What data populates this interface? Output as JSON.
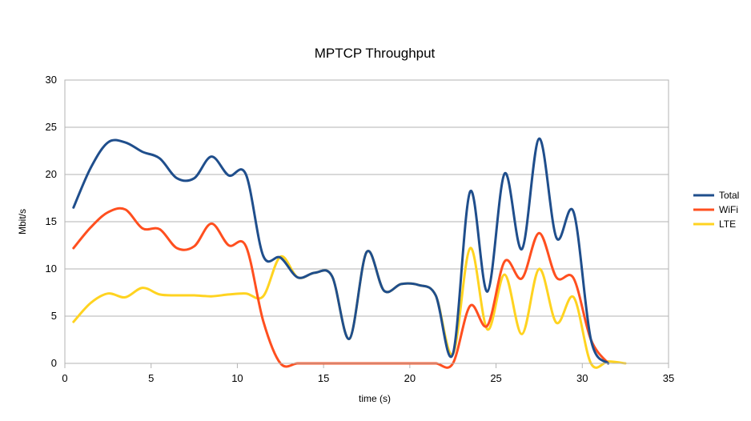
{
  "chart_data": {
    "type": "line",
    "title": "MPTCP Throughput",
    "xlabel": "time (s)",
    "ylabel": "Mbit/s",
    "xlim": [
      0,
      35
    ],
    "ylim": [
      0,
      30
    ],
    "x_ticks": [
      "0",
      "5",
      "10",
      "15",
      "20",
      "25",
      "30",
      "35"
    ],
    "y_ticks": [
      "0",
      "5",
      "10",
      "15",
      "20",
      "25",
      "30"
    ],
    "grid": "horizontal",
    "legend_position": "right",
    "series": [
      {
        "name": "Total",
        "color": "#1f4e8c",
        "points": [
          [
            0.5,
            16.5
          ],
          [
            1.5,
            20.7
          ],
          [
            2.5,
            23.4
          ],
          [
            3.5,
            23.4
          ],
          [
            4.5,
            22.4
          ],
          [
            5.5,
            21.7
          ],
          [
            6.5,
            19.6
          ],
          [
            7.5,
            19.6
          ],
          [
            8.5,
            21.9
          ],
          [
            9.5,
            19.9
          ],
          [
            10.5,
            20
          ],
          [
            11.5,
            11.4
          ],
          [
            12.5,
            11.2
          ],
          [
            13.5,
            9.1
          ],
          [
            14.5,
            9.6
          ],
          [
            15.5,
            9.2
          ],
          [
            16.5,
            2.6
          ],
          [
            17.5,
            11.8
          ],
          [
            18.5,
            7.7
          ],
          [
            19.5,
            8.4
          ],
          [
            20.5,
            8.3
          ],
          [
            21.5,
            7.2
          ],
          [
            22.5,
            1
          ],
          [
            23.5,
            18.2
          ],
          [
            24.5,
            7.6
          ],
          [
            25.5,
            20.1
          ],
          [
            26.5,
            12.1
          ],
          [
            27.5,
            23.8
          ],
          [
            28.5,
            13.3
          ],
          [
            29.5,
            16
          ],
          [
            30.5,
            2.5
          ],
          [
            31.5,
            0
          ]
        ]
      },
      {
        "name": "WiFi",
        "color": "#ff4f1f",
        "points": [
          [
            0.5,
            12.2
          ],
          [
            1.5,
            14.4
          ],
          [
            2.5,
            16
          ],
          [
            3.5,
            16.3
          ],
          [
            4.5,
            14.3
          ],
          [
            5.5,
            14.2
          ],
          [
            6.5,
            12.2
          ],
          [
            7.5,
            12.4
          ],
          [
            8.5,
            14.8
          ],
          [
            9.5,
            12.5
          ],
          [
            10.5,
            12.4
          ],
          [
            11.5,
            4.5
          ],
          [
            12.5,
            0
          ],
          [
            13.5,
            0
          ],
          [
            14.5,
            0
          ],
          [
            15.5,
            0
          ],
          [
            16.5,
            0
          ],
          [
            17.5,
            0
          ],
          [
            18.5,
            0
          ],
          [
            19.5,
            0
          ],
          [
            20.5,
            0
          ],
          [
            21.5,
            0
          ],
          [
            22.5,
            0
          ],
          [
            23.5,
            6.1
          ],
          [
            24.5,
            4
          ],
          [
            25.5,
            10.8
          ],
          [
            26.5,
            9
          ],
          [
            27.5,
            13.8
          ],
          [
            28.5,
            9.1
          ],
          [
            29.5,
            9
          ],
          [
            30.5,
            2.5
          ],
          [
            31.5,
            0
          ]
        ]
      },
      {
        "name": "LTE",
        "color": "#ffd320",
        "points": [
          [
            0.5,
            4.4
          ],
          [
            1.5,
            6.4
          ],
          [
            2.5,
            7.4
          ],
          [
            3.5,
            7
          ],
          [
            4.5,
            8
          ],
          [
            5.5,
            7.3
          ],
          [
            6.5,
            7.2
          ],
          [
            7.5,
            7.2
          ],
          [
            8.5,
            7.1
          ],
          [
            9.5,
            7.3
          ],
          [
            10.5,
            7.4
          ],
          [
            11.5,
            7.1
          ],
          [
            12.5,
            11.3
          ],
          [
            13.5,
            9.1
          ],
          [
            14.5,
            9.6
          ],
          [
            15.5,
            9.2
          ],
          [
            16.5,
            2.6
          ],
          [
            17.5,
            11.8
          ],
          [
            18.5,
            7.7
          ],
          [
            19.5,
            8.4
          ],
          [
            20.5,
            8.3
          ],
          [
            21.5,
            7.2
          ],
          [
            22.5,
            1
          ],
          [
            23.5,
            12.2
          ],
          [
            24.5,
            3.6
          ],
          [
            25.5,
            9.4
          ],
          [
            26.5,
            3.1
          ],
          [
            27.5,
            10
          ],
          [
            28.5,
            4.3
          ],
          [
            29.5,
            7
          ],
          [
            30.5,
            0
          ],
          [
            31.5,
            0.2
          ],
          [
            32.5,
            0
          ]
        ]
      }
    ]
  }
}
